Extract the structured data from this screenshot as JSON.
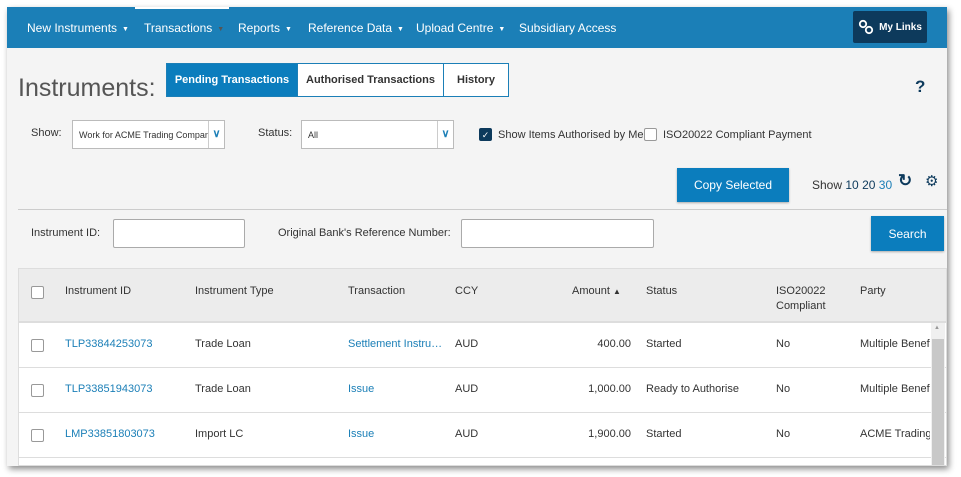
{
  "nav": {
    "items": [
      {
        "label": "New Instruments",
        "caret": true
      },
      {
        "label": "Transactions",
        "caret": true,
        "active": true
      },
      {
        "label": "Reports",
        "caret": true
      },
      {
        "label": "Reference Data",
        "caret": true
      },
      {
        "label": "Upload Centre",
        "caret": true
      },
      {
        "label": "Subsidiary Access",
        "caret": false
      }
    ],
    "my_links": "My Links"
  },
  "page": {
    "title": "Instruments:",
    "help": "?"
  },
  "tabs": [
    {
      "label": "Pending Transactions",
      "active": true
    },
    {
      "label": "Authorised Transactions"
    },
    {
      "label": "History"
    }
  ],
  "filters": {
    "show_label": "Show:",
    "show_value": "Work for ACME Trading Company",
    "status_label": "Status:",
    "status_value": "All",
    "show_authorised_label": "Show Items Authorised by Me",
    "show_authorised_checked": true,
    "iso_label": "ISO20022 Compliant Payment",
    "iso_checked": false
  },
  "actions": {
    "copy_selected": "Copy Selected",
    "show_label": "Show",
    "page_sizes": [
      "10",
      "20",
      "30"
    ]
  },
  "search": {
    "instrument_id_label": "Instrument ID:",
    "instrument_id_value": "",
    "ref_label": "Original Bank's Reference Number:",
    "ref_value": "",
    "button": "Search"
  },
  "table": {
    "columns": [
      "Instrument ID",
      "Instrument Type",
      "Transaction",
      "CCY",
      "Amount",
      "Status",
      "ISO20022 Compliant",
      "Party"
    ],
    "sort": "▲",
    "rows": [
      {
        "id": "TLP33844253073",
        "type": "Trade Loan",
        "transaction": "Settlement Instru…",
        "ccy": "AUD",
        "amount": "400.00",
        "status": "Started",
        "iso": "No",
        "party": "Multiple Benefi"
      },
      {
        "id": "TLP33851943073",
        "type": "Trade Loan",
        "transaction": "Issue",
        "ccy": "AUD",
        "amount": "1,000.00",
        "status": "Ready to Authorise",
        "iso": "No",
        "party": "Multiple Benefi"
      },
      {
        "id": "LMP33851803073",
        "type": "Import LC",
        "transaction": "Issue",
        "ccy": "AUD",
        "amount": "1,900.00",
        "status": "Started",
        "iso": "No",
        "party": "ACME Trading C"
      }
    ]
  },
  "colors": {
    "nav": "#1b7fb7",
    "accent": "#0b7dbd",
    "dark": "#0d3a5c"
  }
}
